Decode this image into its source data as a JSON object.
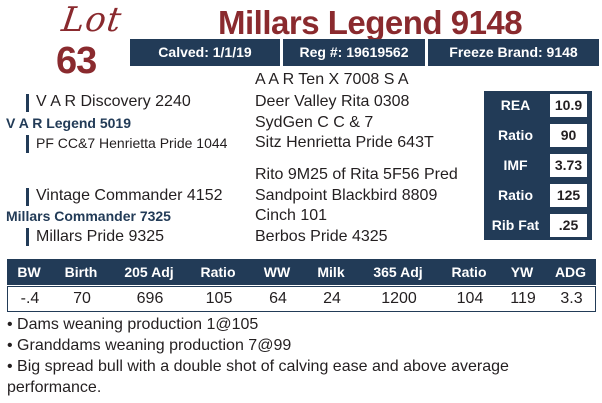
{
  "lot": {
    "label": "Lot",
    "number": "63"
  },
  "title": "Millars Legend 9148",
  "info": {
    "calved": "Calved: 1/1/19",
    "reg": "Reg #: 19619562",
    "freeze_brand": "Freeze Brand: 9148"
  },
  "pedigree": {
    "sire": "V A R Legend 5019",
    "sire_sire": "V A R Discovery 2240",
    "sire_dam": "PF CC&7 Henrietta Pride 1044",
    "sss": "A A R Ten X 7008 S A",
    "ssd": "Deer Valley Rita 0308",
    "sds": "SydGen C C & 7",
    "sdd": "Sitz Henrietta Pride 643T",
    "dam": "Millars Commander 7325",
    "dam_sire": "Vintage Commander 4152",
    "dam_dam": "Millars Pride 9325",
    "dss": "Rito 9M25 of Rita 5F56 Pred",
    "dsd": "Sandpoint Blackbird 8809",
    "dds": "Cinch 101",
    "ddd": "Berbos Pride 4325"
  },
  "carcass": [
    {
      "label": "REA",
      "value": "10.9"
    },
    {
      "label": "Ratio",
      "value": "90"
    },
    {
      "label": "IMF",
      "value": "3.73"
    },
    {
      "label": "Ratio",
      "value": "125"
    },
    {
      "label": "Rib Fat",
      "value": ".25"
    }
  ],
  "performance": {
    "headers": [
      "BW",
      "Birth",
      "205 Adj",
      "Ratio",
      "WW",
      "Milk",
      "365 Adj",
      "Ratio",
      "YW",
      "ADG"
    ],
    "values": [
      "-.4",
      "70",
      "696",
      "105",
      "64",
      "24",
      "1200",
      "104",
      "119",
      "3.3"
    ]
  },
  "notes": [
    "• Dams weaning production 1@105",
    "• Granddams weaning production 7@99",
    "• Big spread bull with a double shot of calving ease and above average performance."
  ],
  "colors": {
    "maroon": "#8a2a2e",
    "navy": "#223b57"
  }
}
